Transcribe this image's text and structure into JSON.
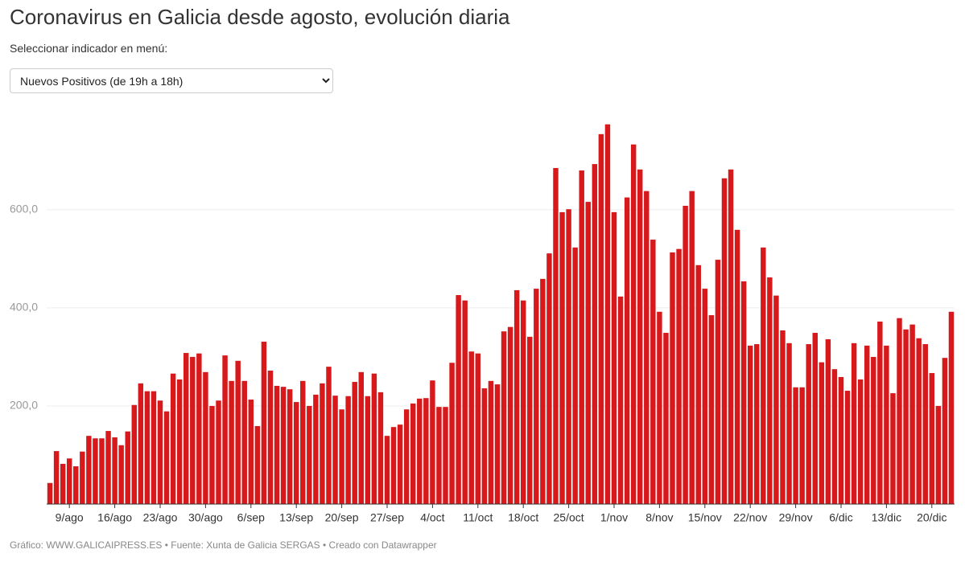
{
  "chart_data": {
    "type": "bar",
    "title": "Coronavirus en Galicia desde agosto, evolución diaria",
    "subtitle": "Seleccionar indicador en menú:",
    "selected_indicator": "Nuevos Positivos (de 19h a 18h)",
    "footer": "Gráfico: WWW.GALICAIPRESS.ES • Fuente: Xunta de Galicia SERGAS • Creado con Datawrapper",
    "color": "#d7191c",
    "grid": true,
    "ylim": [
      0,
      780
    ],
    "yticks": [
      {
        "value": 200,
        "label": "200,0"
      },
      {
        "value": 400,
        "label": "400,0"
      },
      {
        "value": 600,
        "label": "600,0"
      }
    ],
    "categories": [
      null,
      null,
      null,
      "9/ago",
      null,
      null,
      null,
      null,
      null,
      null,
      "16/ago",
      null,
      null,
      null,
      null,
      null,
      null,
      "23/ago",
      null,
      null,
      null,
      null,
      null,
      null,
      "30/ago",
      null,
      null,
      null,
      null,
      null,
      null,
      "6/sep",
      null,
      null,
      null,
      null,
      null,
      null,
      "13/sep",
      null,
      null,
      null,
      null,
      null,
      null,
      "20/sep",
      null,
      null,
      null,
      null,
      null,
      null,
      "27/sep",
      null,
      null,
      null,
      null,
      null,
      null,
      "4/oct",
      null,
      null,
      null,
      null,
      null,
      null,
      "11/oct",
      null,
      null,
      null,
      null,
      null,
      null,
      "18/oct",
      null,
      null,
      null,
      null,
      null,
      null,
      "25/oct",
      null,
      null,
      null,
      null,
      null,
      null,
      "1/nov",
      null,
      null,
      null,
      null,
      null,
      null,
      "8/nov",
      null,
      null,
      null,
      null,
      null,
      null,
      "15/nov",
      null,
      null,
      null,
      null,
      null,
      null,
      "22/nov",
      null,
      null,
      null,
      null,
      null,
      null,
      "29/nov",
      null,
      null,
      null,
      null,
      null,
      null,
      "6/dic",
      null,
      null,
      null,
      null,
      null,
      null,
      "13/dic",
      null,
      null,
      null,
      null,
      null,
      null,
      "20/dic",
      null,
      null,
      null
    ],
    "values": [
      43,
      108,
      82,
      93,
      77,
      107,
      139,
      134,
      134,
      149,
      136,
      120,
      148,
      202,
      246,
      230,
      230,
      211,
      189,
      266,
      254,
      308,
      300,
      307,
      269,
      200,
      211,
      303,
      251,
      292,
      251,
      213,
      159,
      331,
      272,
      241,
      239,
      234,
      208,
      251,
      200,
      223,
      246,
      280,
      221,
      193,
      220,
      249,
      269,
      220,
      266,
      228,
      139,
      157,
      162,
      193,
      205,
      215,
      216,
      252,
      198,
      198,
      288,
      426,
      415,
      311,
      307,
      236,
      251,
      244,
      352,
      361,
      436,
      415,
      341,
      439,
      459,
      511,
      685,
      595,
      601,
      523,
      680,
      616,
      693,
      754,
      774,
      595,
      423,
      625,
      733,
      682,
      638,
      539,
      392,
      349,
      513,
      520,
      608,
      638,
      487,
      439,
      385,
      498,
      664,
      682,
      559,
      454,
      323,
      326,
      523,
      462,
      425,
      354,
      328,
      238,
      238,
      326,
      349,
      289,
      336,
      275,
      259,
      231,
      328,
      254,
      323,
      300,
      372,
      323,
      226,
      379,
      356,
      366,
      338,
      326,
      267,
      200,
      298,
      392
    ]
  }
}
